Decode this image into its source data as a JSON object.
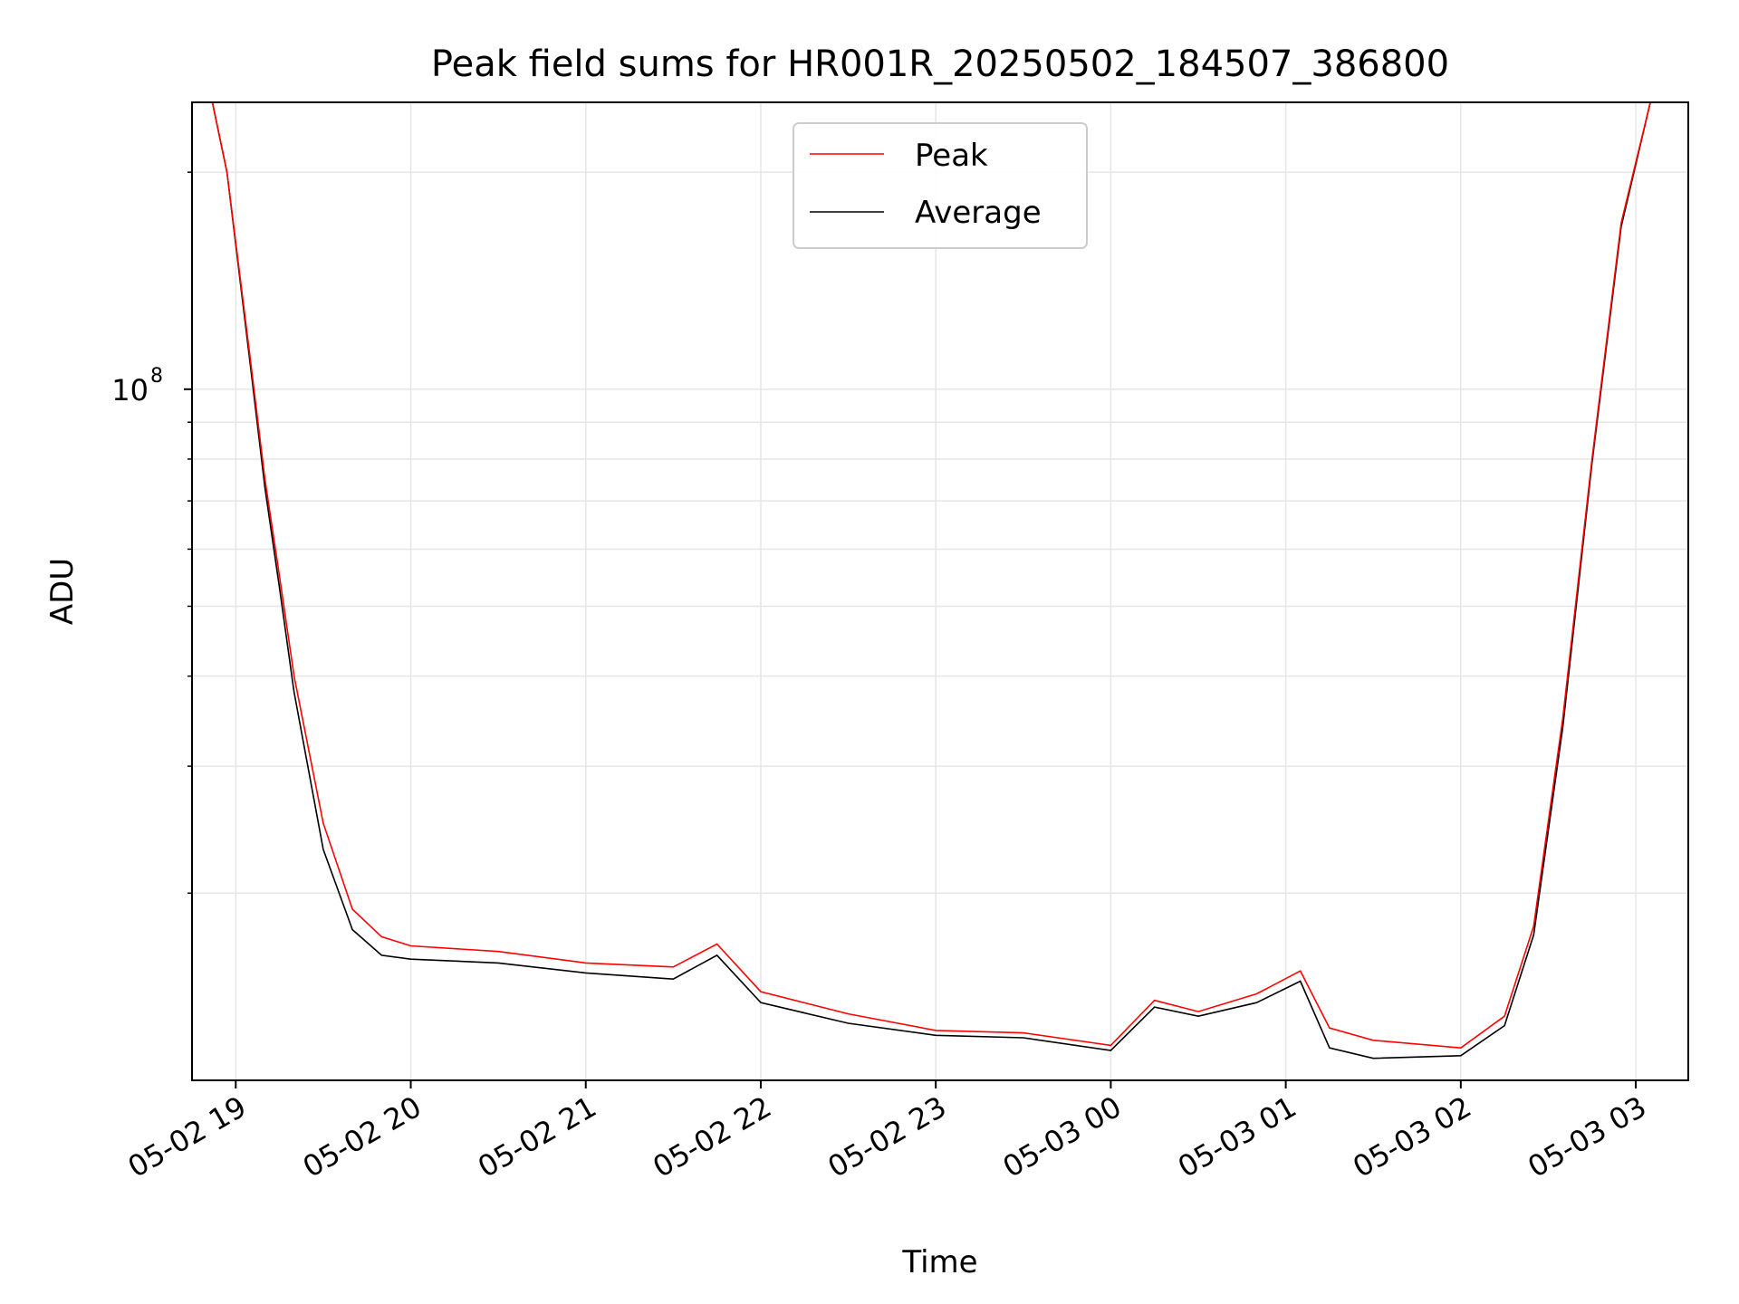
{
  "chart_data": {
    "type": "line",
    "title": "Peak field sums for HR001R_20250502_184507_386800",
    "xlabel": "Time",
    "ylabel": "ADU",
    "yscale": "log",
    "ylim": [
      11000000,
      250000000
    ],
    "xlim": [
      "2025-05-02 18:45",
      "2025-05-03 03:18"
    ],
    "grid": true,
    "legend": "upper center",
    "x_ticks": [
      "05-02 19",
      "05-02 20",
      "05-02 21",
      "05-02 22",
      "05-02 23",
      "05-03 00",
      "05-03 01",
      "05-03 02",
      "05-03 03"
    ],
    "y_ticks": [
      {
        "label": "10",
        "exponent": "8"
      }
    ],
    "colors": {
      "Peak": "#ff0000",
      "Average": "#000000"
    },
    "series": [
      {
        "name": "Peak",
        "x": [
          "2025-05-02 18:52",
          "2025-05-02 18:57",
          "2025-05-02 19:05",
          "2025-05-02 19:10",
          "2025-05-02 19:15",
          "2025-05-02 19:20",
          "2025-05-02 19:30",
          "2025-05-02 19:40",
          "2025-05-02 19:50",
          "2025-05-02 20:00",
          "2025-05-02 20:30",
          "2025-05-02 21:00",
          "2025-05-02 21:30",
          "2025-05-02 21:45",
          "2025-05-02 22:00",
          "2025-05-02 22:30",
          "2025-05-02 23:00",
          "2025-05-02 23:30",
          "2025-05-03 00:00",
          "2025-05-03 00:15",
          "2025-05-03 00:30",
          "2025-05-03 00:50",
          "2025-05-03 01:05",
          "2025-05-03 01:15",
          "2025-05-03 01:30",
          "2025-05-03 02:00",
          "2025-05-03 02:15",
          "2025-05-03 02:25",
          "2025-05-03 02:35",
          "2025-05-03 02:45",
          "2025-05-03 02:55",
          "2025-05-03 03:05",
          "2025-05-03 03:10"
        ],
        "y": [
          250000000,
          200000000,
          110000000,
          75000000,
          55000000,
          40000000,
          25000000,
          19000000,
          17400000,
          16900000,
          16600000,
          16000000,
          15800000,
          17000000,
          14600000,
          13600000,
          12900000,
          12800000,
          12300000,
          14200000,
          13700000,
          14500000,
          15600000,
          13000000,
          12500000,
          12200000,
          13500000,
          18000000,
          35000000,
          80000000,
          170000000,
          250000000,
          250000000
        ]
      },
      {
        "name": "Average",
        "x": [
          "2025-05-02 18:52",
          "2025-05-02 18:57",
          "2025-05-02 19:05",
          "2025-05-02 19:10",
          "2025-05-02 19:15",
          "2025-05-02 19:20",
          "2025-05-02 19:30",
          "2025-05-02 19:40",
          "2025-05-02 19:50",
          "2025-05-02 20:00",
          "2025-05-02 20:30",
          "2025-05-02 21:00",
          "2025-05-02 21:30",
          "2025-05-02 21:45",
          "2025-05-02 22:00",
          "2025-05-02 22:30",
          "2025-05-02 23:00",
          "2025-05-02 23:30",
          "2025-05-03 00:00",
          "2025-05-03 00:15",
          "2025-05-03 00:30",
          "2025-05-03 00:50",
          "2025-05-03 01:05",
          "2025-05-03 01:15",
          "2025-05-03 01:30",
          "2025-05-03 02:00",
          "2025-05-03 02:15",
          "2025-05-03 02:25",
          "2025-05-03 02:35",
          "2025-05-03 02:45",
          "2025-05-03 02:55",
          "2025-05-03 03:05",
          "2025-05-03 03:10"
        ],
        "y": [
          250000000,
          200000000,
          108000000,
          73000000,
          53000000,
          38000000,
          23000000,
          17800000,
          16400000,
          16200000,
          16000000,
          15500000,
          15200000,
          16400000,
          14100000,
          13200000,
          12700000,
          12600000,
          12100000,
          13900000,
          13500000,
          14100000,
          15100000,
          12200000,
          11800000,
          11900000,
          13100000,
          17500000,
          34000000,
          79000000,
          168000000,
          250000000,
          250000000
        ]
      }
    ]
  }
}
